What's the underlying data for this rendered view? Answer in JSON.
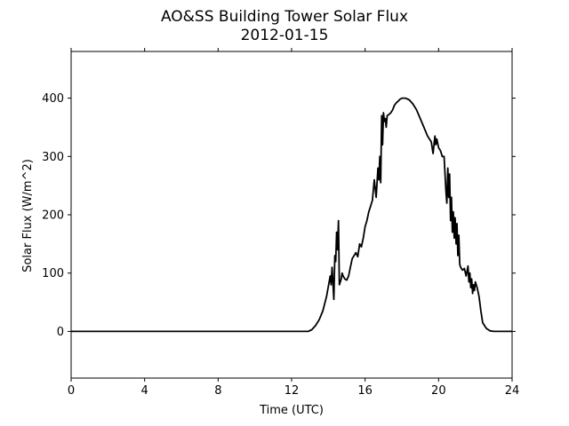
{
  "chart_data": {
    "type": "line",
    "title": "AO&SS Building Tower Solar Flux",
    "subtitle": "2012-01-15",
    "xlabel": "Time (UTC)",
    "ylabel": "Solar Flux (W/m^2)",
    "xlim": [
      0,
      24
    ],
    "ylim": [
      -80,
      480
    ],
    "xticks": [
      0,
      4,
      8,
      12,
      16,
      20,
      24
    ],
    "yticks": [
      0,
      100,
      200,
      300,
      400
    ],
    "grid": false,
    "line_color": "#000000",
    "series": [
      {
        "x": [
          0,
          12.9,
          13.1,
          13.3,
          13.5,
          13.7,
          13.9,
          14.1,
          14.15,
          14.2,
          14.3,
          14.35,
          14.4,
          14.45,
          14.5,
          14.55,
          14.6,
          14.65,
          14.7,
          14.75,
          14.8,
          14.9,
          15.0,
          15.1,
          15.2,
          15.3,
          15.5,
          15.6,
          15.7,
          15.8,
          15.9,
          16.0,
          16.1,
          16.2,
          16.3,
          16.4,
          16.5,
          16.6,
          16.7,
          16.75,
          16.8,
          16.85,
          16.9,
          16.95,
          17.0,
          17.05,
          17.1,
          17.15,
          17.2,
          17.3,
          17.4,
          17.5,
          17.6,
          17.7,
          17.8,
          17.9,
          18.0,
          18.2,
          18.4,
          18.6,
          18.8,
          19.0,
          19.2,
          19.4,
          19.6,
          19.7,
          19.8,
          19.85,
          19.9,
          20.0,
          20.1,
          20.2,
          20.3,
          20.4,
          20.45,
          20.5,
          20.55,
          20.6,
          20.65,
          20.7,
          20.75,
          20.8,
          20.85,
          20.9,
          20.95,
          21.0,
          21.05,
          21.1,
          21.15,
          21.2,
          21.3,
          21.4,
          21.5,
          21.6,
          21.65,
          21.7,
          21.75,
          21.8,
          21.85,
          21.9,
          21.95,
          22.0,
          22.1,
          22.2,
          22.3,
          22.4,
          22.6,
          22.8,
          23.0,
          23.2,
          23.4,
          24
        ],
        "y": [
          0,
          0,
          3,
          10,
          20,
          35,
          60,
          95,
          80,
          110,
          55,
          130,
          120,
          170,
          140,
          190,
          80,
          85,
          90,
          100,
          95,
          90,
          88,
          95,
          110,
          125,
          135,
          128,
          150,
          145,
          160,
          180,
          190,
          205,
          215,
          225,
          260,
          230,
          280,
          260,
          300,
          255,
          370,
          320,
          375,
          360,
          365,
          350,
          370,
          372,
          375,
          380,
          388,
          392,
          395,
          398,
          400,
          400,
          397,
          390,
          380,
          365,
          350,
          335,
          325,
          305,
          335,
          320,
          330,
          315,
          310,
          300,
          300,
          240,
          220,
          280,
          230,
          270,
          190,
          230,
          170,
          205,
          160,
          195,
          150,
          185,
          130,
          165,
          115,
          110,
          105,
          108,
          95,
          112,
          85,
          100,
          75,
          90,
          65,
          80,
          70,
          85,
          75,
          60,
          35,
          15,
          5,
          1,
          0,
          0,
          0,
          0
        ]
      }
    ]
  }
}
